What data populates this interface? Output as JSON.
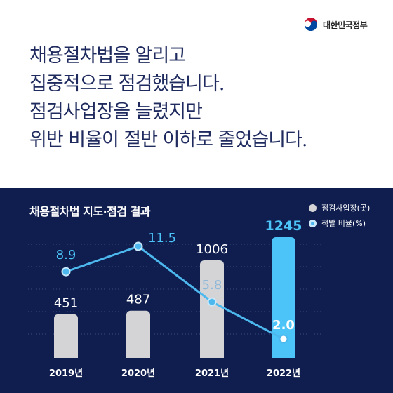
{
  "brand": {
    "name": "대한민국정부",
    "logo_icon": "taegeuk-icon"
  },
  "headline": {
    "lines": [
      "채용절차법을 알리고",
      "집중적으로 점검했습니다.",
      "점검사업장을 늘렸지만",
      "위반 비율이 절반 이하로 줄었습니다."
    ]
  },
  "colors": {
    "navy": "#0f1e4f",
    "bar_gray": "#d4d4d6",
    "bar_highlight": "#4cc4f7",
    "line": "#4cb8ee",
    "text_navy": "#1f2b5e"
  },
  "chart_data": {
    "type": "bar",
    "title": "채용절차법 지도·점검 결과",
    "categories": [
      "2019년",
      "2020년",
      "2021년",
      "2022년"
    ],
    "series": [
      {
        "name": "점검사업장(곳)",
        "type": "bar",
        "values": [
          451,
          487,
          1006,
          1245
        ],
        "value_labels": [
          "451",
          "487",
          "1006",
          "1245"
        ]
      },
      {
        "name": "적발 비율(%)",
        "type": "line",
        "values": [
          8.9,
          11.5,
          5.8,
          2.0
        ],
        "value_labels": [
          "8.9",
          "11.5",
          "5.8",
          "2.0"
        ]
      }
    ],
    "highlight_category": "2022년",
    "legend_position": "top-right",
    "grid": true
  }
}
